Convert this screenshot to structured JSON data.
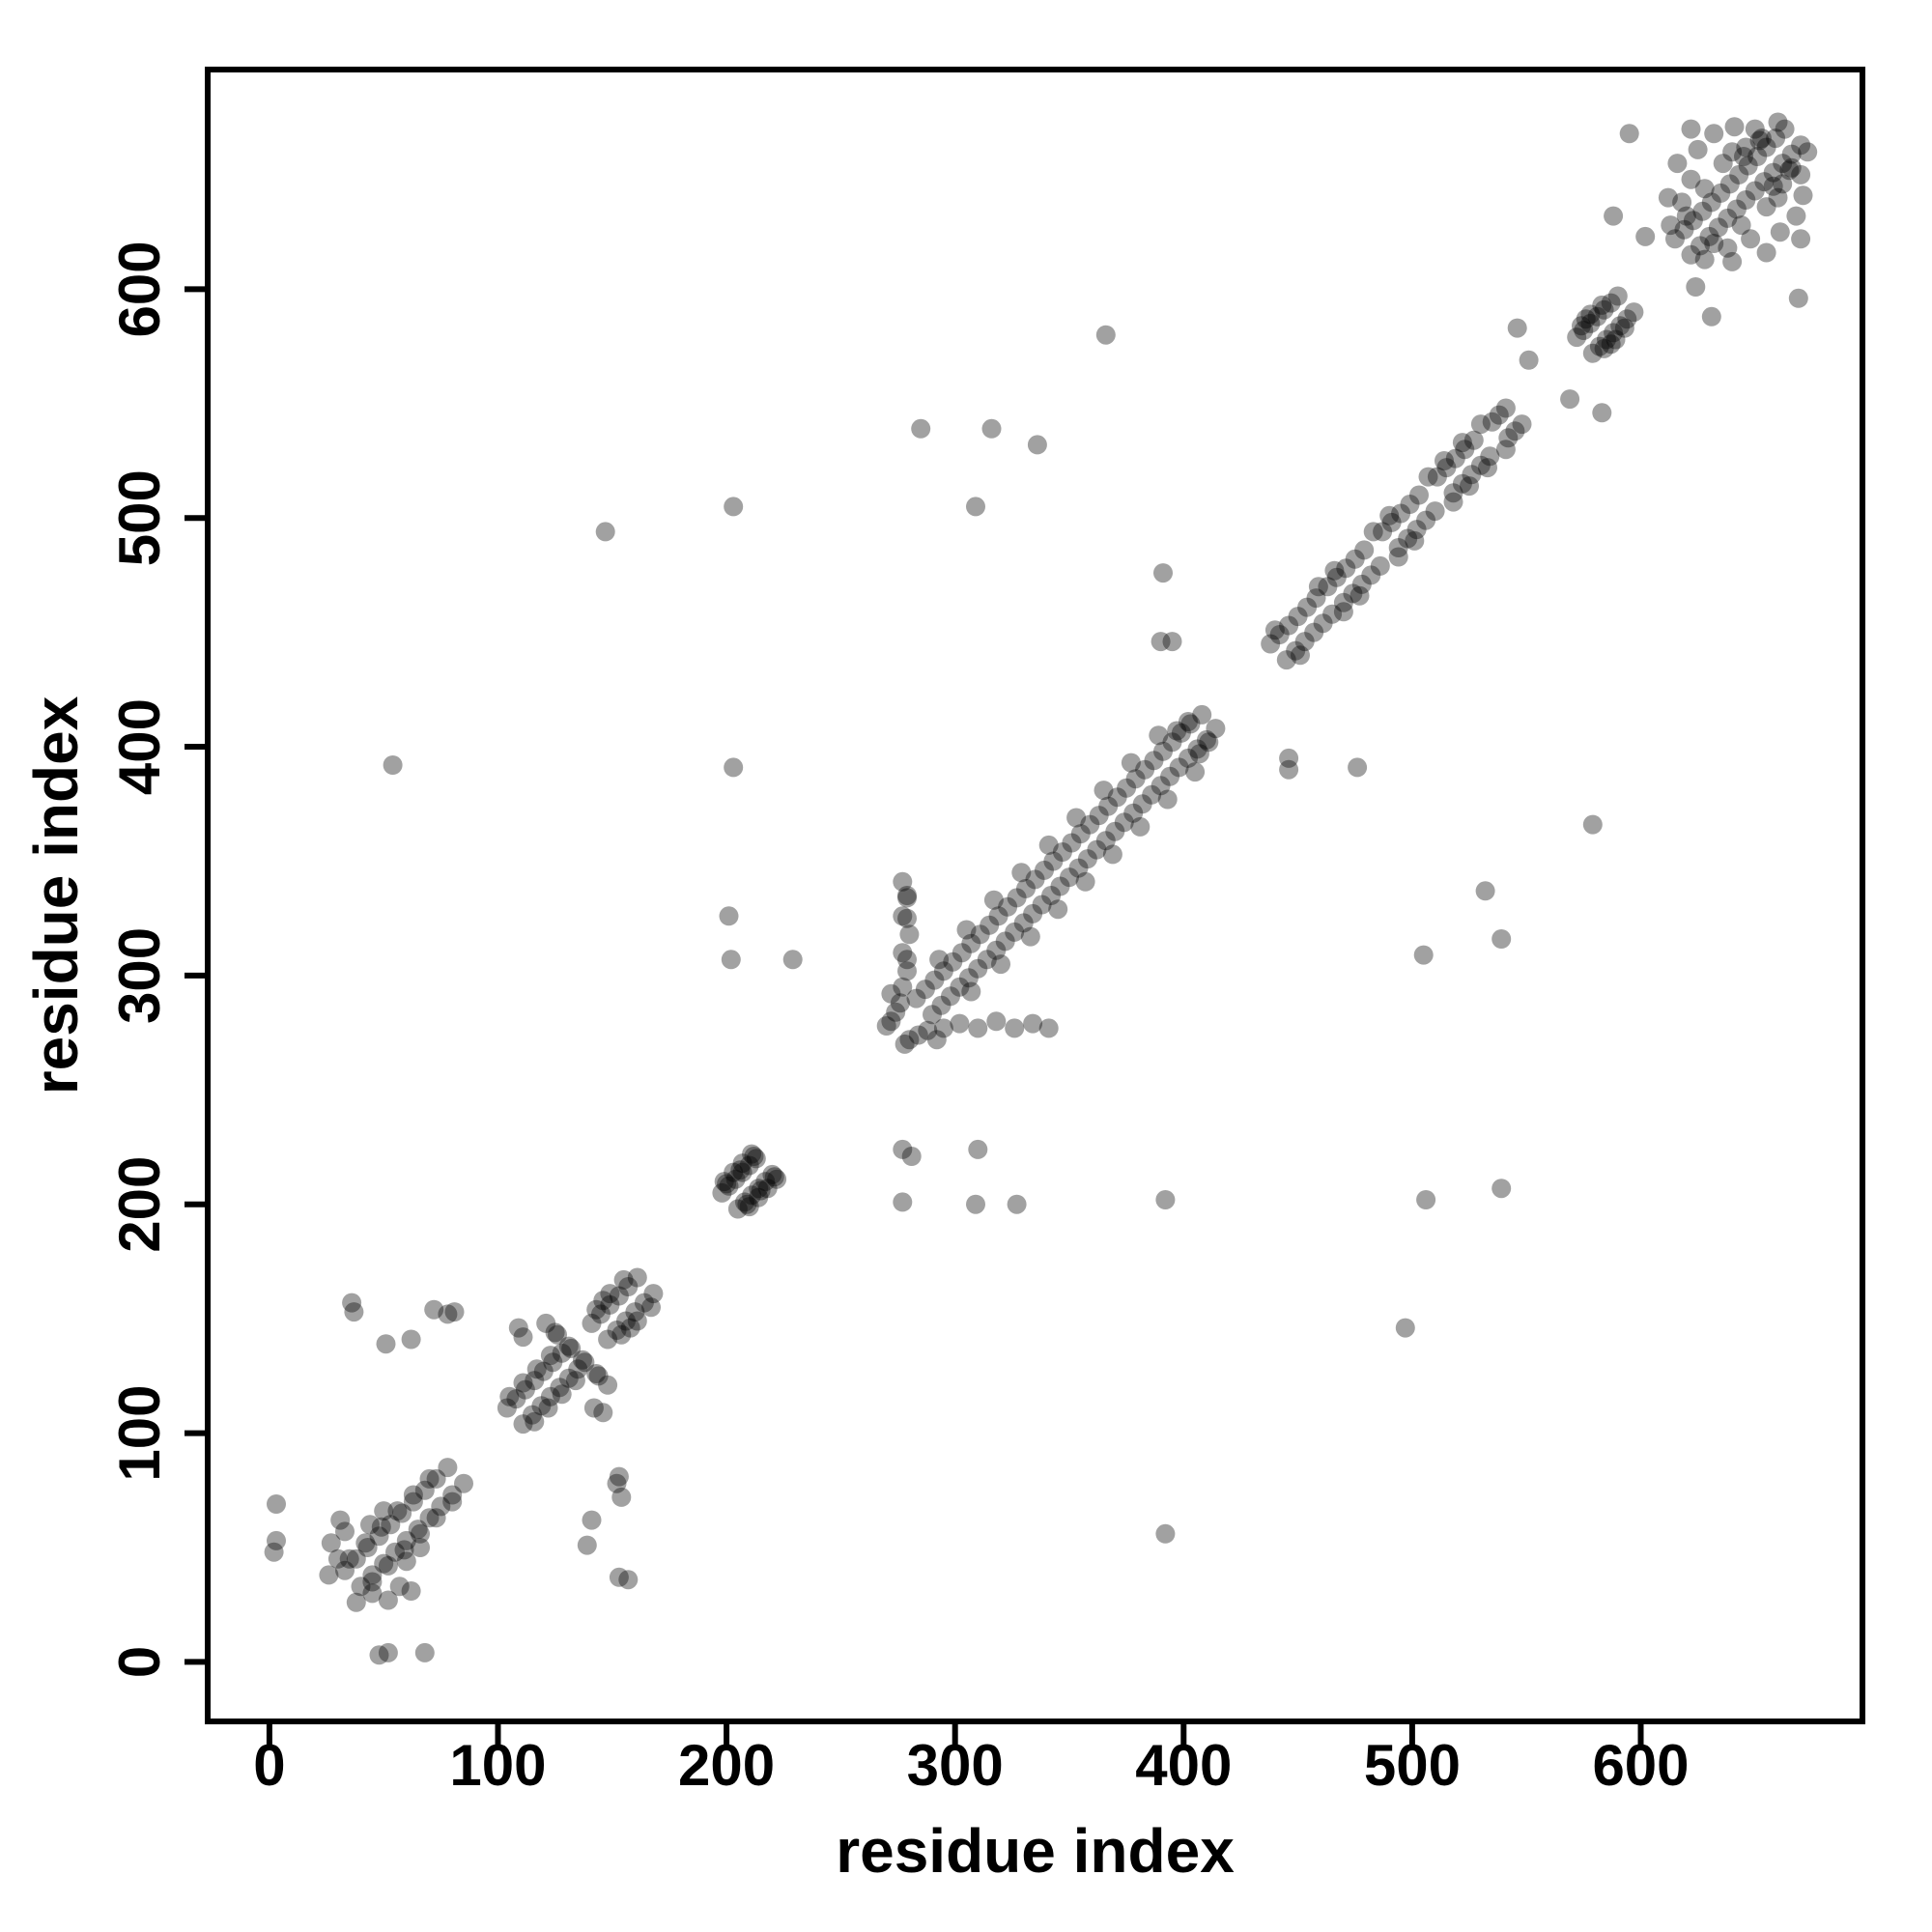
{
  "figure": {
    "background": "#ffffff",
    "border_color": "#000000"
  },
  "chart_data": {
    "type": "scatter",
    "title": "",
    "xlabel": "residue index",
    "ylabel": "residue index",
    "xlim": [
      -27,
      697
    ],
    "ylim": [
      -26,
      696
    ],
    "x_ticks": [
      0,
      100,
      200,
      300,
      400,
      500,
      600
    ],
    "y_ticks": [
      0,
      100,
      200,
      300,
      400,
      500,
      600
    ],
    "grid": false,
    "legend": "none",
    "point_color": "#000000",
    "point_opacity": 0.37,
    "point_radius_px": 10,
    "points": [
      [
        33,
        40
      ],
      [
        40,
        33
      ],
      [
        38,
        45
      ],
      [
        45,
        38
      ],
      [
        43,
        50
      ],
      [
        50,
        43
      ],
      [
        48,
        55
      ],
      [
        55,
        48
      ],
      [
        53,
        60
      ],
      [
        60,
        53
      ],
      [
        58,
        65
      ],
      [
        65,
        58
      ],
      [
        63,
        70
      ],
      [
        70,
        63
      ],
      [
        68,
        75
      ],
      [
        75,
        68
      ],
      [
        73,
        80
      ],
      [
        80,
        73
      ],
      [
        78,
        85
      ],
      [
        85,
        78
      ],
      [
        35,
        45
      ],
      [
        45,
        35
      ],
      [
        42,
        52
      ],
      [
        52,
        42
      ],
      [
        49,
        59
      ],
      [
        59,
        49
      ],
      [
        56,
        66
      ],
      [
        66,
        56
      ],
      [
        63,
        73
      ],
      [
        73,
        63
      ],
      [
        70,
        80
      ],
      [
        80,
        70
      ],
      [
        27,
        52
      ],
      [
        52,
        27
      ],
      [
        30,
        45
      ],
      [
        45,
        30
      ],
      [
        33,
        57
      ],
      [
        57,
        33
      ],
      [
        26,
        38
      ],
      [
        38,
        26
      ],
      [
        60,
        44
      ],
      [
        44,
        60
      ],
      [
        66,
        50
      ],
      [
        50,
        66
      ],
      [
        31,
        62
      ],
      [
        62,
        31
      ],
      [
        48,
        3
      ],
      [
        52,
        4
      ],
      [
        68,
        4
      ],
      [
        2,
        48
      ],
      [
        3,
        53
      ],
      [
        3,
        69
      ],
      [
        37,
        153
      ],
      [
        51,
        139
      ],
      [
        62,
        141
      ],
      [
        72,
        154
      ],
      [
        78,
        152
      ],
      [
        36,
        157
      ],
      [
        153,
        37
      ],
      [
        139,
        51
      ],
      [
        141,
        62
      ],
      [
        154,
        72
      ],
      [
        152,
        78
      ],
      [
        157,
        36
      ],
      [
        104,
        111
      ],
      [
        111,
        104
      ],
      [
        108,
        115
      ],
      [
        115,
        108
      ],
      [
        112,
        119
      ],
      [
        119,
        112
      ],
      [
        116,
        123
      ],
      [
        123,
        116
      ],
      [
        120,
        127
      ],
      [
        127,
        120
      ],
      [
        124,
        131
      ],
      [
        131,
        124
      ],
      [
        128,
        135
      ],
      [
        135,
        128
      ],
      [
        105,
        116
      ],
      [
        116,
        105
      ],
      [
        111,
        122
      ],
      [
        122,
        111
      ],
      [
        117,
        128
      ],
      [
        128,
        117
      ],
      [
        123,
        134
      ],
      [
        134,
        123
      ],
      [
        141,
        148
      ],
      [
        148,
        141
      ],
      [
        145,
        152
      ],
      [
        152,
        145
      ],
      [
        149,
        156
      ],
      [
        156,
        149
      ],
      [
        153,
        160
      ],
      [
        160,
        153
      ],
      [
        157,
        164
      ],
      [
        164,
        157
      ],
      [
        161,
        168
      ],
      [
        168,
        161
      ],
      [
        143,
        154
      ],
      [
        154,
        143
      ],
      [
        149,
        161
      ],
      [
        161,
        149
      ],
      [
        155,
        167
      ],
      [
        167,
        155
      ],
      [
        146,
        158
      ],
      [
        158,
        146
      ],
      [
        125,
        144
      ],
      [
        131,
        138
      ],
      [
        137,
        132
      ],
      [
        143,
        126
      ],
      [
        148,
        121
      ],
      [
        144,
        125
      ],
      [
        138,
        131
      ],
      [
        132,
        137
      ],
      [
        126,
        143
      ],
      [
        121,
        148
      ],
      [
        109,
        146
      ],
      [
        146,
        109
      ],
      [
        142,
        111
      ],
      [
        111,
        142
      ],
      [
        81,
        153
      ],
      [
        153,
        81
      ],
      [
        198,
        205
      ],
      [
        205,
        198
      ],
      [
        201,
        208
      ],
      [
        208,
        201
      ],
      [
        204,
        211
      ],
      [
        211,
        204
      ],
      [
        207,
        214
      ],
      [
        214,
        207
      ],
      [
        210,
        217
      ],
      [
        217,
        210
      ],
      [
        213,
        220
      ],
      [
        220,
        213
      ],
      [
        199,
        210
      ],
      [
        210,
        199
      ],
      [
        203,
        214
      ],
      [
        214,
        203
      ],
      [
        207,
        218
      ],
      [
        218,
        207
      ],
      [
        211,
        222
      ],
      [
        222,
        211
      ],
      [
        200,
        209
      ],
      [
        209,
        200
      ],
      [
        206,
        215
      ],
      [
        215,
        206
      ],
      [
        212,
        221
      ],
      [
        221,
        212
      ],
      [
        201,
        326
      ],
      [
        202,
        307
      ],
      [
        229,
        307
      ],
      [
        279,
        335
      ],
      [
        279,
        325
      ],
      [
        279,
        307
      ],
      [
        277,
        224
      ],
      [
        281,
        221
      ],
      [
        310,
        224
      ],
      [
        277,
        201
      ],
      [
        309,
        200
      ],
      [
        327,
        200
      ],
      [
        203,
        391
      ],
      [
        392,
        202
      ],
      [
        203,
        505
      ],
      [
        506,
        202
      ],
      [
        147,
        494
      ],
      [
        497,
        146
      ],
      [
        54,
        392
      ],
      [
        392,
        56
      ],
      [
        539,
        207
      ],
      [
        285,
        539
      ],
      [
        316,
        539
      ],
      [
        336,
        532
      ],
      [
        309,
        505
      ],
      [
        505,
        309
      ],
      [
        532,
        337
      ],
      [
        539,
        316
      ],
      [
        366,
        580
      ],
      [
        579,
        366
      ],
      [
        391,
        476
      ],
      [
        476,
        391
      ],
      [
        272,
        280
      ],
      [
        280,
        272
      ],
      [
        274,
        284
      ],
      [
        284,
        274
      ],
      [
        276,
        288
      ],
      [
        288,
        276
      ],
      [
        270,
        278
      ],
      [
        278,
        270
      ],
      [
        272,
        292
      ],
      [
        292,
        272
      ],
      [
        277,
        295
      ],
      [
        279,
        302
      ],
      [
        277,
        310
      ],
      [
        280,
        318
      ],
      [
        277,
        326
      ],
      [
        279,
        334
      ],
      [
        277,
        341
      ],
      [
        295,
        277
      ],
      [
        302,
        279
      ],
      [
        310,
        277
      ],
      [
        318,
        280
      ],
      [
        326,
        277
      ],
      [
        334,
        279
      ],
      [
        341,
        277
      ],
      [
        283,
        290
      ],
      [
        290,
        283
      ],
      [
        287,
        294
      ],
      [
        294,
        287
      ],
      [
        291,
        298
      ],
      [
        298,
        291
      ],
      [
        295,
        302
      ],
      [
        302,
        295
      ],
      [
        299,
        306
      ],
      [
        306,
        299
      ],
      [
        303,
        310
      ],
      [
        310,
        303
      ],
      [
        307,
        314
      ],
      [
        314,
        307
      ],
      [
        311,
        318
      ],
      [
        318,
        311
      ],
      [
        315,
        322
      ],
      [
        322,
        315
      ],
      [
        319,
        326
      ],
      [
        326,
        319
      ],
      [
        323,
        330
      ],
      [
        330,
        323
      ],
      [
        327,
        334
      ],
      [
        334,
        327
      ],
      [
        331,
        338
      ],
      [
        338,
        331
      ],
      [
        335,
        342
      ],
      [
        342,
        335
      ],
      [
        339,
        346
      ],
      [
        346,
        339
      ],
      [
        343,
        350
      ],
      [
        350,
        343
      ],
      [
        347,
        354
      ],
      [
        354,
        347
      ],
      [
        351,
        358
      ],
      [
        358,
        351
      ],
      [
        355,
        362
      ],
      [
        362,
        355
      ],
      [
        359,
        366
      ],
      [
        366,
        359
      ],
      [
        363,
        370
      ],
      [
        370,
        363
      ],
      [
        367,
        374
      ],
      [
        374,
        367
      ],
      [
        371,
        378
      ],
      [
        378,
        371
      ],
      [
        375,
        382
      ],
      [
        382,
        375
      ],
      [
        379,
        386
      ],
      [
        386,
        379
      ],
      [
        383,
        390
      ],
      [
        390,
        383
      ],
      [
        387,
        394
      ],
      [
        394,
        387
      ],
      [
        391,
        398
      ],
      [
        398,
        391
      ],
      [
        395,
        402
      ],
      [
        402,
        395
      ],
      [
        399,
        406
      ],
      [
        406,
        399
      ],
      [
        403,
        410
      ],
      [
        410,
        403
      ],
      [
        293,
        307
      ],
      [
        307,
        293
      ],
      [
        305,
        320
      ],
      [
        320,
        305
      ],
      [
        317,
        333
      ],
      [
        333,
        317
      ],
      [
        329,
        345
      ],
      [
        345,
        329
      ],
      [
        341,
        357
      ],
      [
        357,
        341
      ],
      [
        353,
        369
      ],
      [
        369,
        353
      ],
      [
        365,
        381
      ],
      [
        381,
        365
      ],
      [
        377,
        393
      ],
      [
        393,
        377
      ],
      [
        389,
        405
      ],
      [
        405,
        389
      ],
      [
        407,
        397
      ],
      [
        397,
        407
      ],
      [
        411,
        402
      ],
      [
        402,
        411
      ],
      [
        408,
        414
      ],
      [
        414,
        408
      ],
      [
        390,
        446
      ],
      [
        395,
        446
      ],
      [
        446,
        390
      ],
      [
        446,
        395
      ],
      [
        438,
        445
      ],
      [
        445,
        438
      ],
      [
        442,
        449
      ],
      [
        449,
        442
      ],
      [
        446,
        453
      ],
      [
        453,
        446
      ],
      [
        450,
        457
      ],
      [
        457,
        450
      ],
      [
        454,
        461
      ],
      [
        461,
        454
      ],
      [
        458,
        465
      ],
      [
        465,
        458
      ],
      [
        463,
        470
      ],
      [
        470,
        463
      ],
      [
        467,
        474
      ],
      [
        474,
        467
      ],
      [
        471,
        478
      ],
      [
        478,
        471
      ],
      [
        475,
        482
      ],
      [
        482,
        475
      ],
      [
        479,
        486
      ],
      [
        486,
        479
      ],
      [
        487,
        494
      ],
      [
        494,
        487
      ],
      [
        491,
        498
      ],
      [
        498,
        491
      ],
      [
        495,
        502
      ],
      [
        502,
        495
      ],
      [
        499,
        506
      ],
      [
        506,
        499
      ],
      [
        503,
        510
      ],
      [
        510,
        503
      ],
      [
        511,
        518
      ],
      [
        518,
        511
      ],
      [
        515,
        522
      ],
      [
        522,
        515
      ],
      [
        519,
        526
      ],
      [
        526,
        519
      ],
      [
        523,
        530
      ],
      [
        530,
        523
      ],
      [
        527,
        534
      ],
      [
        534,
        527
      ],
      [
        535,
        542
      ],
      [
        542,
        535
      ],
      [
        538,
        545
      ],
      [
        545,
        538
      ],
      [
        541,
        548
      ],
      [
        548,
        541
      ],
      [
        440,
        451
      ],
      [
        451,
        440
      ],
      [
        459,
        470
      ],
      [
        470,
        459
      ],
      [
        466,
        477
      ],
      [
        477,
        466
      ],
      [
        483,
        494
      ],
      [
        494,
        483
      ],
      [
        490,
        501
      ],
      [
        501,
        490
      ],
      [
        507,
        518
      ],
      [
        518,
        507
      ],
      [
        514,
        525
      ],
      [
        525,
        514
      ],
      [
        522,
        533
      ],
      [
        533,
        522
      ],
      [
        530,
        541
      ],
      [
        541,
        530
      ],
      [
        572,
        579
      ],
      [
        579,
        572
      ],
      [
        575,
        582
      ],
      [
        582,
        575
      ],
      [
        578,
        585
      ],
      [
        585,
        578
      ],
      [
        581,
        588
      ],
      [
        588,
        581
      ],
      [
        584,
        591
      ],
      [
        591,
        584
      ],
      [
        587,
        594
      ],
      [
        594,
        587
      ],
      [
        590,
        597
      ],
      [
        597,
        590
      ],
      [
        574,
        584
      ],
      [
        584,
        574
      ],
      [
        578,
        589
      ],
      [
        589,
        578
      ],
      [
        583,
        593
      ],
      [
        593,
        583
      ],
      [
        576,
        587
      ],
      [
        587,
        576
      ],
      [
        546,
        583
      ],
      [
        551,
        569
      ],
      [
        569,
        552
      ],
      [
        583,
        546
      ],
      [
        588,
        632
      ],
      [
        602,
        623
      ],
      [
        624,
        601
      ],
      [
        631,
        588
      ],
      [
        595,
        668
      ],
      [
        669,
        596
      ],
      [
        615,
        622
      ],
      [
        622,
        615
      ],
      [
        619,
        626
      ],
      [
        626,
        619
      ],
      [
        623,
        630
      ],
      [
        630,
        623
      ],
      [
        627,
        634
      ],
      [
        634,
        627
      ],
      [
        631,
        638
      ],
      [
        638,
        631
      ],
      [
        635,
        642
      ],
      [
        642,
        635
      ],
      [
        639,
        646
      ],
      [
        646,
        639
      ],
      [
        643,
        650
      ],
      [
        650,
        643
      ],
      [
        647,
        654
      ],
      [
        654,
        647
      ],
      [
        651,
        658
      ],
      [
        658,
        651
      ],
      [
        655,
        662
      ],
      [
        662,
        655
      ],
      [
        659,
        666
      ],
      [
        666,
        659
      ],
      [
        663,
        670
      ],
      [
        670,
        663
      ],
      [
        618,
        638
      ],
      [
        638,
        618
      ],
      [
        622,
        648
      ],
      [
        648,
        622
      ],
      [
        616,
        655
      ],
      [
        655,
        616
      ],
      [
        625,
        661
      ],
      [
        661,
        625
      ],
      [
        632,
        668
      ],
      [
        668,
        632
      ],
      [
        641,
        671
      ],
      [
        671,
        641
      ],
      [
        650,
        670
      ],
      [
        670,
        650
      ],
      [
        660,
        673
      ],
      [
        673,
        660
      ],
      [
        628,
        644
      ],
      [
        644,
        628
      ],
      [
        636,
        655
      ],
      [
        655,
        636
      ],
      [
        646,
        662
      ],
      [
        662,
        646
      ],
      [
        620,
        632
      ],
      [
        632,
        620
      ],
      [
        653,
        666
      ],
      [
        666,
        653
      ],
      [
        658,
        645
      ],
      [
        645,
        658
      ],
      [
        665,
        652
      ],
      [
        652,
        665
      ],
      [
        640,
        660
      ],
      [
        660,
        640
      ],
      [
        612,
        640
      ],
      [
        640,
        612
      ],
      [
        613,
        628
      ],
      [
        628,
        613
      ],
      [
        622,
        670
      ],
      [
        670,
        622
      ]
    ]
  }
}
